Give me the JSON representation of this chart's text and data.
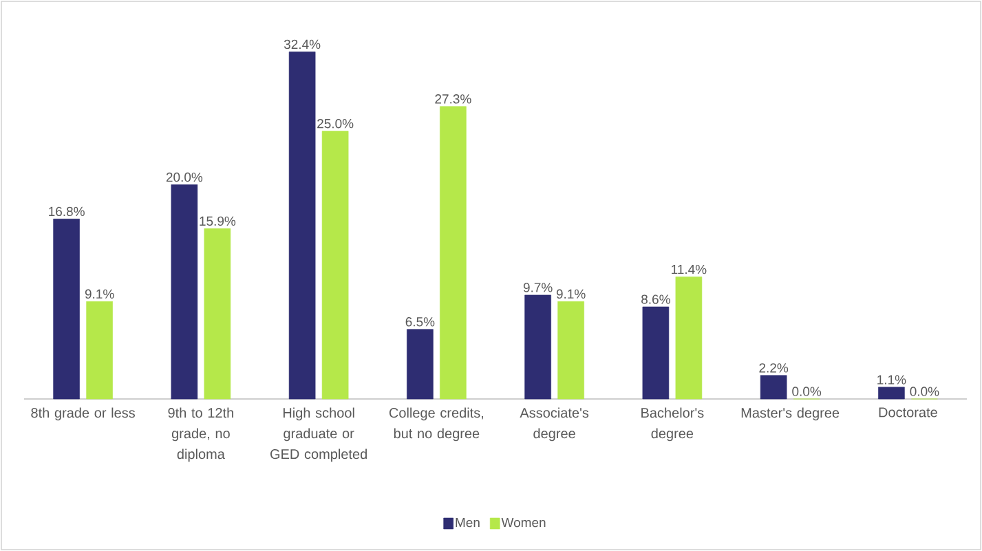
{
  "chart_data": {
    "type": "bar",
    "categories": [
      "8th grade or less",
      "9th to 12th grade, no diploma",
      "High school graduate or GED completed",
      "College credits, but no degree",
      "Associate's degree",
      "Bachelor's degree",
      "Master's degree",
      "Doctorate"
    ],
    "series": [
      {
        "name": "Men",
        "color": "#2e2d72",
        "values": [
          16.8,
          20.0,
          32.4,
          6.5,
          9.7,
          8.6,
          2.2,
          1.1
        ],
        "value_labels": [
          "16.8%",
          "20.0%",
          "32.4%",
          "6.5%",
          "9.7%",
          "8.6%",
          "2.2%",
          "1.1%"
        ]
      },
      {
        "name": "Women",
        "color": "#b5e84a",
        "values": [
          9.1,
          15.9,
          25.0,
          27.3,
          9.1,
          11.4,
          0.0,
          0.0
        ],
        "value_labels": [
          "9.1%",
          "15.9%",
          "25.0%",
          "27.3%",
          "9.1%",
          "11.4%",
          "0.0%",
          "0.0%"
        ]
      }
    ],
    "legend": "bottom"
  }
}
